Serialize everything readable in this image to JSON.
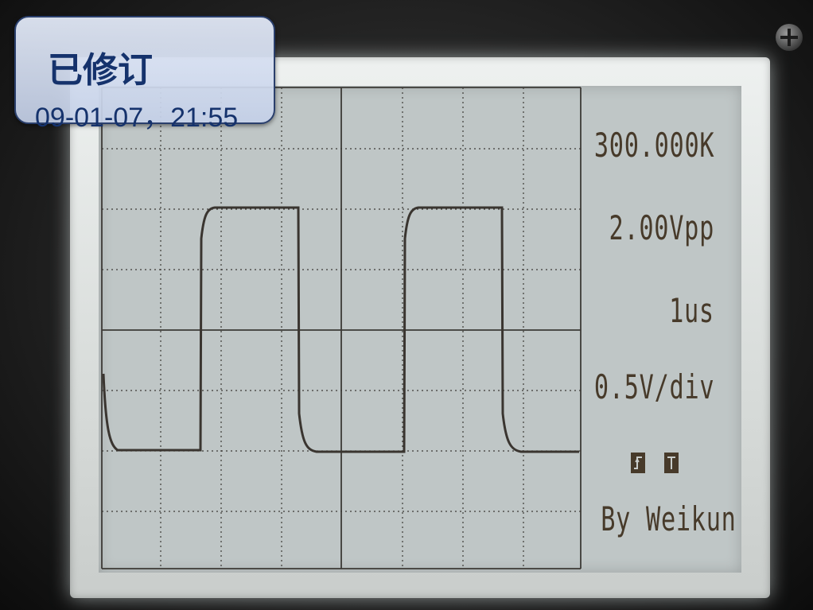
{
  "badge": {
    "title": "已修订",
    "timestamp": "09-01-07，21:55"
  },
  "readouts": {
    "frequency": "300.000K",
    "amplitude": "2.00Vpp",
    "time_div": "1us",
    "volt_div": "0.5V/div",
    "author": "By Weikun"
  },
  "icons": [
    "rising-edge-trigger-icon",
    "trigger-mode-icon"
  ],
  "colors": {
    "lcd_background": "#bfc6c6",
    "lcd_ink": "#473a2a",
    "badge_text": "#15326c"
  }
}
